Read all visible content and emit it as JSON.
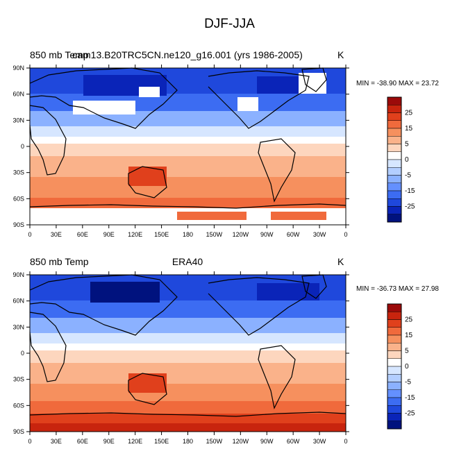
{
  "main_title": "DJF-JJA",
  "panels": [
    {
      "left_title": "850 mb Temp",
      "center_title": "cam13.B20TRC5CN.ne120_g16.001 (yrs 1986-2005)",
      "units": "K",
      "min_max": "MIN = -38.90 MAX =  23.72",
      "has_missing_data": true
    },
    {
      "left_title": "850 mb Temp",
      "center_title": "ERA40",
      "units": "K",
      "min_max": "MIN = -36.73 MAX =  27.98",
      "has_missing_data": false
    }
  ],
  "lat_labels": [
    "90N",
    "60N",
    "30N",
    "0",
    "30S",
    "60S",
    "90S"
  ],
  "lon_labels": [
    "0",
    "30E",
    "60E",
    "90E",
    "120E",
    "150E",
    "180",
    "150W",
    "120W",
    "90W",
    "60W",
    "30W",
    "0"
  ],
  "colorbar": {
    "labels": [
      "25",
      "15",
      "5",
      "0",
      "-5",
      "-15",
      "-25"
    ],
    "colors_top_to_bottom": [
      "#9b0a0a",
      "#c8240e",
      "#e0401c",
      "#f06a3c",
      "#f6905e",
      "#fab28a",
      "#fdd6be",
      "#ffffff",
      "#d6e6ff",
      "#b3ceff",
      "#8bb1ff",
      "#6490ff",
      "#3c6cf2",
      "#1f48dc",
      "#0a24b8",
      "#00127e"
    ]
  },
  "colors": {
    "land_outline": "#000000",
    "missing": "#ffffff"
  }
}
